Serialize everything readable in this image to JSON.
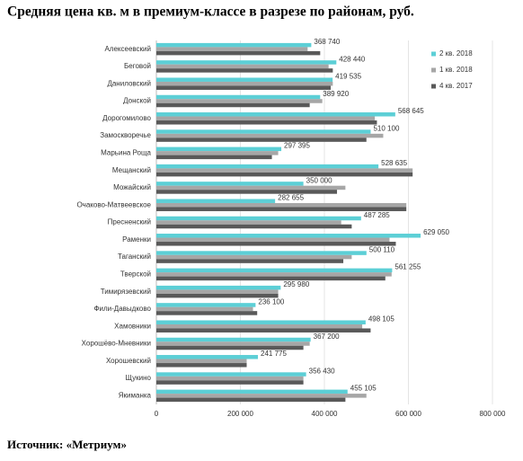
{
  "chart_data": {
    "type": "bar",
    "orientation": "horizontal",
    "title": "Средняя цена кв. м в премиум-классе в разрезе по районам, руб.",
    "categories": [
      "Алексеевский",
      "Беговой",
      "Даниловский",
      "Донской",
      "Дорогомилово",
      "Замоскворечье",
      "Марьина Роща",
      "Мещанский",
      "Можайский",
      "Очаково-Матвеевское",
      "Пресненский",
      "Раменки",
      "Таганский",
      "Тверской",
      "Тимирязевский",
      "Фили-Давыдково",
      "Хамовники",
      "Хорошёво-Мневники",
      "Хорошевский",
      "Щукино",
      "Якиманка"
    ],
    "series": [
      {
        "name": "2 кв. 2018",
        "color": "#5ccfd6",
        "values": [
          368740,
          428440,
          419535,
          389920,
          568645,
          510100,
          297395,
          528635,
          350000,
          282655,
          487285,
          629050,
          500110,
          561255,
          295980,
          236100,
          498105,
          367200,
          241775,
          356430,
          455105
        ],
        "value_labels": [
          "368 740",
          "428 440",
          "419 535",
          "389 920",
          "568 645",
          "510 100",
          "297 395",
          "528 635",
          "350 000",
          "282 655",
          "487 285",
          "629 050",
          "500 110",
          "561 255",
          "295 980",
          "236 100",
          "498 105",
          "367 200",
          "241 775",
          "356 430",
          "455 105"
        ]
      },
      {
        "name": "1 кв. 2018",
        "color": "#a6a6a6",
        "values": [
          360000,
          410000,
          420000,
          395000,
          520000,
          540000,
          290000,
          610000,
          450000,
          595000,
          440000,
          555000,
          465000,
          560000,
          290000,
          230000,
          490000,
          365000,
          215000,
          350000,
          500000
        ]
      },
      {
        "name": "4 кв. 2017",
        "color": "#595959",
        "values": [
          390000,
          420000,
          415000,
          365000,
          525000,
          500000,
          275000,
          610000,
          430000,
          595000,
          465000,
          570000,
          445000,
          545000,
          290000,
          240000,
          510000,
          350000,
          215000,
          350000,
          450000
        ]
      }
    ],
    "xlim": [
      0,
      800000
    ],
    "xticks": [
      0,
      {
        "value": 200000,
        "label": "200 000"
      },
      {
        "value": 400000,
        "label": "400 000"
      },
      {
        "value": 600000,
        "label": "600 000"
      },
      {
        "value": 800000,
        "label": "800 000"
      }
    ],
    "grid": true,
    "legend": "upper right"
  },
  "footer": {
    "source": "Источник: «Метриум»"
  }
}
